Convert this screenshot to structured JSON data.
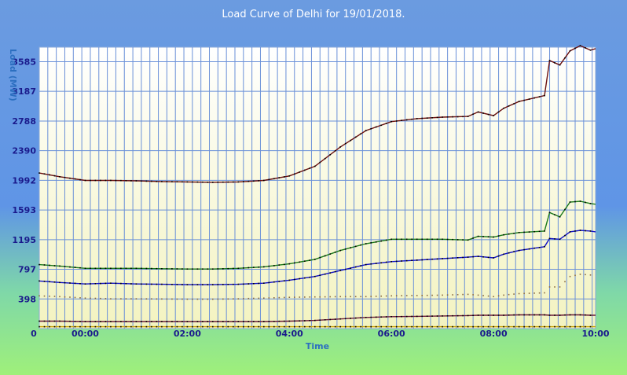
{
  "chart_data": {
    "type": "line",
    "title": "Load Curve of Delhi for 19/01/2018.",
    "xlabel": "Time",
    "ylabel": "Load (MW)",
    "x_range_hours": [
      -0.9,
      10.0
    ],
    "x_ticks": [
      {
        "label": "00:00",
        "hour": 0
      },
      {
        "label": "02:00",
        "hour": 2
      },
      {
        "label": "04:00",
        "hour": 4
      },
      {
        "label": "06:00",
        "hour": 6
      },
      {
        "label": "08:00",
        "hour": 8
      },
      {
        "label": "10:00",
        "hour": 10
      }
    ],
    "x_origin_label": "0",
    "y_ticks": [
      0,
      398,
      797,
      1195,
      1593,
      1992,
      2390,
      2788,
      3187,
      3585
    ],
    "ylim": [
      0,
      3780
    ],
    "grid": true,
    "legend": "none",
    "series": [
      {
        "color": "#6b1010",
        "marker": "#000000",
        "x": [
          -0.9,
          -0.5,
          0,
          0.5,
          1,
          1.5,
          2,
          2.5,
          3,
          3.5,
          4,
          4.5,
          5,
          5.5,
          6,
          6.5,
          7,
          7.5,
          7.7,
          8,
          8.2,
          8.5,
          9,
          9.1,
          9.3,
          9.5,
          9.7,
          9.9,
          10
        ],
        "y": [
          2090,
          2040,
          1990,
          1990,
          1985,
          1975,
          1970,
          1965,
          1970,
          1990,
          2050,
          2180,
          2440,
          2660,
          2780,
          2820,
          2840,
          2850,
          2910,
          2860,
          2960,
          3050,
          3130,
          3600,
          3540,
          3730,
          3800,
          3740,
          3760
        ]
      },
      {
        "color": "#1a7a1a",
        "marker": "#000000",
        "x": [
          -0.9,
          -0.5,
          0,
          0.5,
          1,
          1.5,
          2,
          2.5,
          3,
          3.5,
          4,
          4.5,
          5,
          5.5,
          6,
          6.5,
          7,
          7.5,
          7.7,
          8,
          8.2,
          8.5,
          9,
          9.1,
          9.3,
          9.5,
          9.7,
          9.9,
          10
        ],
        "y": [
          860,
          840,
          810,
          810,
          810,
          805,
          800,
          800,
          810,
          830,
          870,
          930,
          1050,
          1140,
          1200,
          1200,
          1200,
          1190,
          1240,
          1230,
          1260,
          1290,
          1310,
          1560,
          1500,
          1700,
          1710,
          1680,
          1670
        ]
      },
      {
        "color": "#1010c8",
        "marker": "#000000",
        "x": [
          -0.9,
          -0.5,
          0,
          0.5,
          1,
          1.5,
          2,
          2.5,
          3,
          3.5,
          4,
          4.5,
          5,
          5.5,
          6,
          6.5,
          7,
          7.5,
          7.7,
          8,
          8.2,
          8.5,
          9,
          9.1,
          9.3,
          9.5,
          9.7,
          9.9,
          10
        ],
        "y": [
          640,
          620,
          600,
          610,
          600,
          595,
          590,
          590,
          595,
          610,
          650,
          700,
          780,
          860,
          900,
          920,
          940,
          960,
          970,
          950,
          1000,
          1050,
          1100,
          1210,
          1200,
          1300,
          1320,
          1310,
          1300
        ]
      },
      {
        "color": "#8a6a40",
        "marker": "#8a6a40",
        "dotted": true,
        "x": [
          -0.9,
          -0.5,
          0,
          0.5,
          1,
          1.5,
          2,
          2.5,
          3,
          3.5,
          4,
          4.5,
          5,
          5.5,
          6,
          6.5,
          7,
          7.5,
          7.7,
          8,
          8.2,
          8.5,
          9,
          9.1,
          9.3,
          9.5,
          9.7,
          9.9,
          10
        ],
        "y": [
          440,
          430,
          410,
          400,
          400,
          398,
          395,
          395,
          400,
          410,
          420,
          425,
          430,
          430,
          440,
          445,
          450,
          460,
          450,
          430,
          450,
          470,
          480,
          560,
          560,
          700,
          730,
          720,
          740
        ]
      },
      {
        "color": "#6a1a3a",
        "marker": "#000000",
        "x": [
          -0.9,
          -0.5,
          0,
          0.5,
          1,
          1.5,
          2,
          2.5,
          3,
          3.5,
          4,
          4.5,
          5,
          5.5,
          6,
          6.5,
          7,
          7.5,
          7.7,
          8,
          8.2,
          8.5,
          9,
          9.1,
          9.3,
          9.5,
          9.7,
          9.9,
          10
        ],
        "y": [
          100,
          100,
          95,
          95,
          95,
          95,
          95,
          95,
          95,
          95,
          100,
          110,
          130,
          150,
          160,
          165,
          170,
          175,
          180,
          180,
          180,
          185,
          185,
          180,
          180,
          185,
          185,
          180,
          180
        ]
      },
      {
        "color": "#c8a000",
        "marker": "#000000",
        "x": [
          -0.9,
          -0.5,
          0,
          0.5,
          1,
          1.5,
          2,
          2.5,
          3,
          3.5,
          4,
          4.5,
          5,
          5.5,
          6,
          6.5,
          7,
          7.5,
          7.7,
          8,
          8.2,
          8.5,
          9,
          9.1,
          9.3,
          9.5,
          9.7,
          9.9,
          10
        ],
        "y": [
          25,
          25,
          25,
          25,
          25,
          25,
          25,
          25,
          25,
          25,
          25,
          25,
          25,
          25,
          25,
          25,
          25,
          25,
          25,
          25,
          25,
          25,
          25,
          25,
          25,
          25,
          25,
          25,
          25
        ]
      }
    ]
  }
}
